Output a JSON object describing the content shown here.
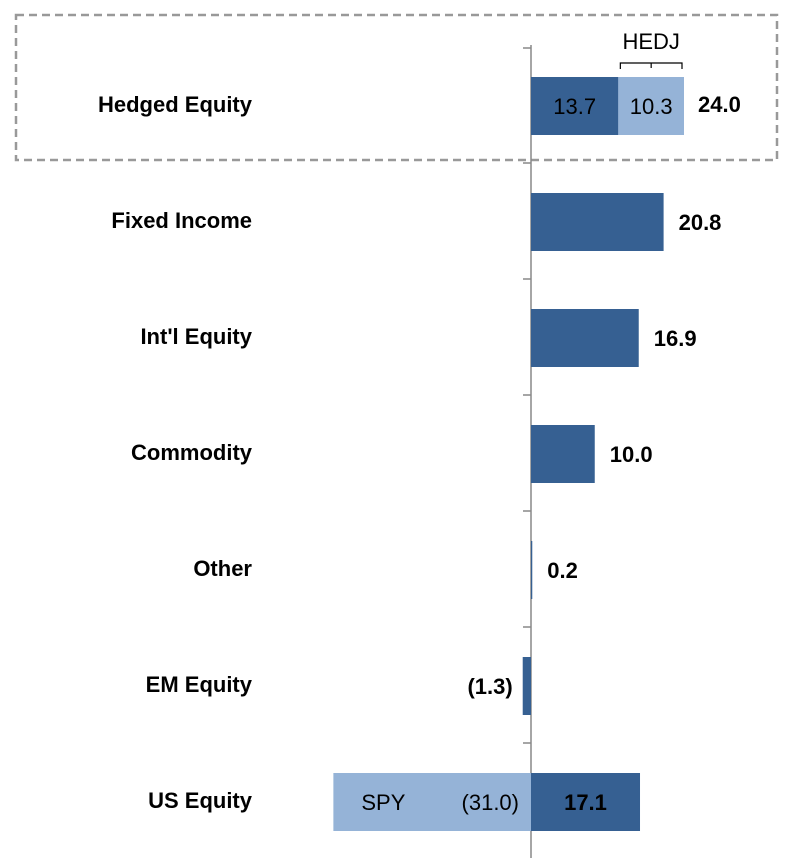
{
  "chart_data": {
    "type": "bar",
    "orientation": "horizontal",
    "stacked": true,
    "categories": [
      "Hedged Equity",
      "Fixed Income",
      "Int'l Equity",
      "Commodity",
      "Other",
      "EM Equity",
      "US Equity"
    ],
    "series": [
      {
        "color": "#366092",
        "values": [
          13.7,
          20.8,
          16.9,
          10.0,
          0.2,
          -1.3,
          17.1
        ],
        "value_labels": [
          "13.7",
          "20.8",
          "16.9",
          "10.0",
          "0.2",
          "(1.3)",
          "17.1"
        ]
      },
      {
        "color": "#95b3d7",
        "values": [
          10.3,
          null,
          null,
          null,
          null,
          null,
          -31.0
        ],
        "value_labels": [
          "10.3",
          null,
          null,
          null,
          null,
          null,
          "(31.0)"
        ],
        "bar_tags": [
          "HEDJ",
          null,
          null,
          null,
          null,
          null,
          "SPY"
        ]
      }
    ],
    "total": {
      "category_index": 0,
      "value": 24.0,
      "label": "24.0"
    },
    "xlim": [
      -35,
      40
    ]
  }
}
